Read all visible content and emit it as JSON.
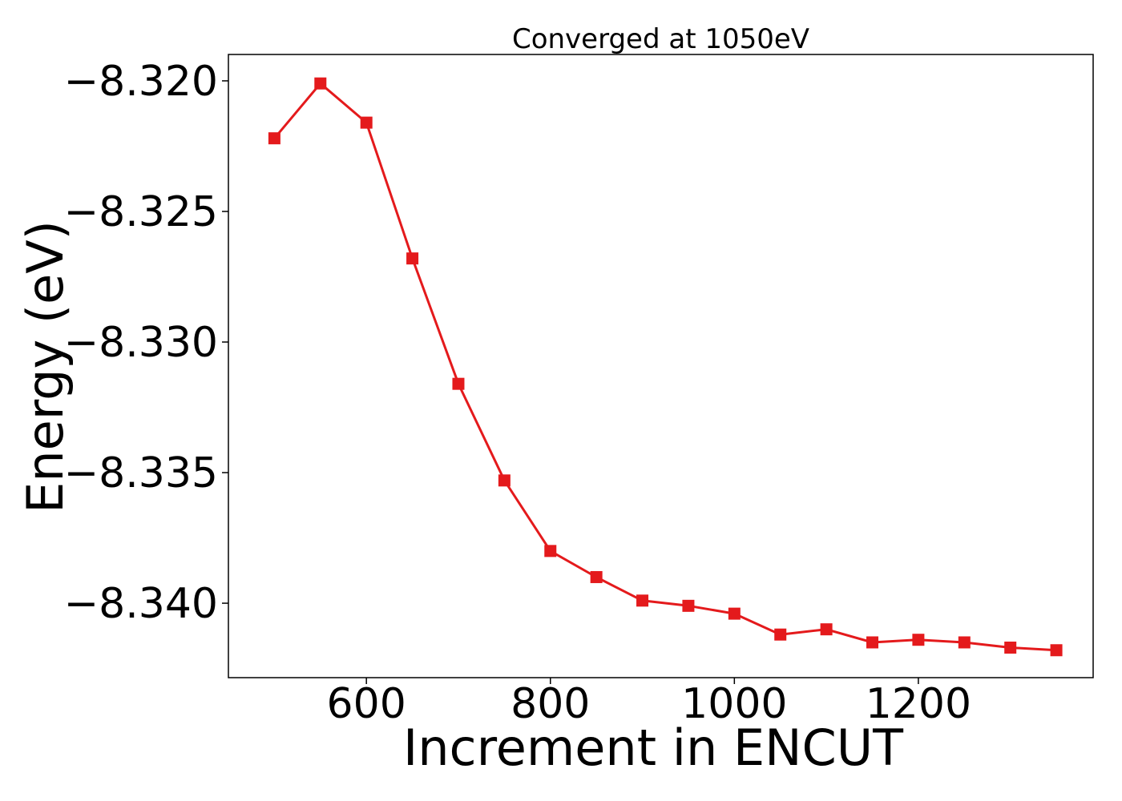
{
  "chart_data": {
    "type": "line",
    "title": "Converged at 1050eV",
    "xlabel": "Increment in ENCUT",
    "ylabel": "Energy (eV)",
    "xlim": [
      450,
      1390
    ],
    "ylim": [
      -8.34285,
      -8.31899
    ],
    "x_ticks": [
      600,
      800,
      1000,
      1200
    ],
    "x_tick_labels": [
      "600",
      "800",
      "1000",
      "1200"
    ],
    "y_ticks": [
      -8.32,
      -8.325,
      -8.33,
      -8.335,
      -8.34
    ],
    "y_tick_labels": [
      "−8.320",
      "−8.325",
      "−8.330",
      "−8.335",
      "−8.340"
    ],
    "grid": false,
    "series": [
      {
        "color": "#e41a1c",
        "marker": "square",
        "x": [
          500,
          550,
          600,
          650,
          700,
          750,
          800,
          850,
          900,
          950,
          1000,
          1050,
          1100,
          1150,
          1200,
          1250,
          1300,
          1350
        ],
        "values": [
          -8.3222,
          -8.3201,
          -8.3216,
          -8.3268,
          -8.3316,
          -8.3353,
          -8.338,
          -8.339,
          -8.3399,
          -8.3401,
          -8.3404,
          -8.3412,
          -8.341,
          -8.3415,
          -8.3414,
          -8.3415,
          -8.3417,
          -8.3418
        ]
      }
    ]
  }
}
